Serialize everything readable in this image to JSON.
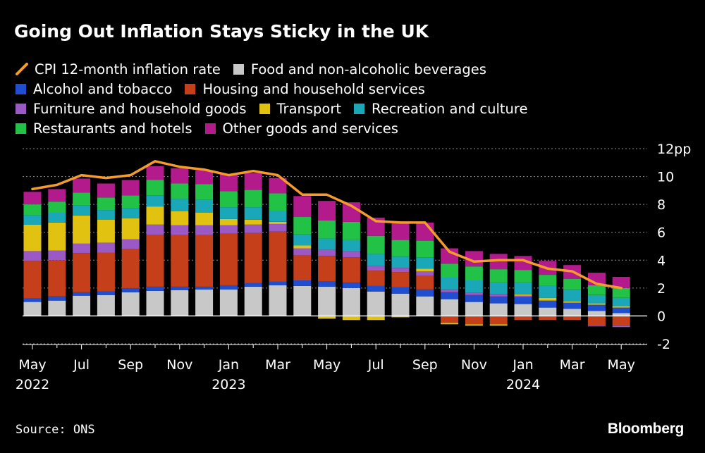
{
  "chart_data": {
    "type": "bar",
    "stacked": true,
    "title": "Going Out Inflation Stays Sticky in the UK",
    "unit": "pp",
    "xlabel": "",
    "ylabel": "",
    "ylim": [
      -2,
      12
    ],
    "yticks": [
      -2,
      0,
      2,
      4,
      6,
      8,
      10,
      12
    ],
    "ytick_labels": [
      "-2",
      "0",
      "2",
      "4",
      "6",
      "8",
      "10",
      "12pp"
    ],
    "grid": true,
    "categories": [
      "May 2022",
      "Jun 2022",
      "Jul 2022",
      "Aug 2022",
      "Sep 2022",
      "Oct 2022",
      "Nov 2022",
      "Dec 2022",
      "Jan 2023",
      "Feb 2023",
      "Mar 2023",
      "Apr 2023",
      "May 2023",
      "Jun 2023",
      "Jul 2023",
      "Aug 2023",
      "Sep 2023",
      "Oct 2023",
      "Nov 2023",
      "Dec 2023",
      "Jan 2024",
      "Feb 2024",
      "Mar 2024",
      "Apr 2024",
      "May 2024"
    ],
    "x_tick_labels": [
      {
        "index": 0,
        "month": "May",
        "year": "2022"
      },
      {
        "index": 2,
        "month": "Jul",
        "year": ""
      },
      {
        "index": 4,
        "month": "Sep",
        "year": ""
      },
      {
        "index": 6,
        "month": "Nov",
        "year": ""
      },
      {
        "index": 8,
        "month": "Jan",
        "year": "2023"
      },
      {
        "index": 10,
        "month": "Mar",
        "year": ""
      },
      {
        "index": 12,
        "month": "May",
        "year": ""
      },
      {
        "index": 14,
        "month": "Jul",
        "year": ""
      },
      {
        "index": 16,
        "month": "Sep",
        "year": ""
      },
      {
        "index": 18,
        "month": "Nov",
        "year": ""
      },
      {
        "index": 20,
        "month": "Jan",
        "year": "2024"
      },
      {
        "index": 22,
        "month": "Mar",
        "year": ""
      },
      {
        "index": 24,
        "month": "May",
        "year": ""
      }
    ],
    "series": [
      {
        "name": "Food and non-alcoholic beverages",
        "color": "#c8c8c8",
        "values": [
          1.0,
          1.1,
          1.45,
          1.5,
          1.7,
          1.8,
          1.85,
          1.9,
          1.9,
          2.1,
          2.2,
          2.15,
          2.1,
          2.0,
          1.75,
          1.6,
          1.4,
          1.2,
          1.0,
          0.9,
          0.85,
          0.6,
          0.5,
          0.35,
          0.2
        ]
      },
      {
        "name": "Alcohol and tobacco",
        "color": "#1f4fd0",
        "values": [
          0.25,
          0.3,
          0.25,
          0.25,
          0.3,
          0.3,
          0.25,
          0.2,
          0.3,
          0.25,
          0.25,
          0.4,
          0.4,
          0.4,
          0.4,
          0.45,
          0.5,
          0.5,
          0.5,
          0.5,
          0.5,
          0.5,
          0.45,
          0.45,
          0.4
        ]
      },
      {
        "name": "Housing and household services",
        "color": "#c5401a",
        "values": [
          2.7,
          2.6,
          2.8,
          2.8,
          2.8,
          3.7,
          3.7,
          3.7,
          3.7,
          3.6,
          3.6,
          1.8,
          1.8,
          1.8,
          1.1,
          1.1,
          1.0,
          -0.5,
          -0.6,
          -0.6,
          -0.3,
          -0.3,
          -0.3,
          -0.7,
          -0.7
        ]
      },
      {
        "name": "Furniture and household goods",
        "color": "#9b59c6",
        "values": [
          0.7,
          0.7,
          0.7,
          0.7,
          0.7,
          0.75,
          0.7,
          0.7,
          0.6,
          0.6,
          0.55,
          0.5,
          0.45,
          0.45,
          0.35,
          0.3,
          0.3,
          0.2,
          0.15,
          0.15,
          0.1,
          0.0,
          0.0,
          -0.05,
          -0.1
        ]
      },
      {
        "name": "Transport",
        "color": "#e2c210",
        "values": [
          1.9,
          2.0,
          2.0,
          1.65,
          1.5,
          1.3,
          1.0,
          0.9,
          0.45,
          0.35,
          0.15,
          0.2,
          -0.2,
          -0.3,
          -0.3,
          -0.1,
          0.2,
          -0.1,
          -0.1,
          -0.1,
          0.1,
          0.2,
          0.1,
          0.1,
          0.1
        ]
      },
      {
        "name": "Recreation and culture",
        "color": "#1aa7b7",
        "values": [
          0.65,
          0.7,
          0.75,
          0.7,
          0.75,
          0.8,
          0.9,
          0.95,
          0.85,
          0.9,
          0.8,
          0.8,
          0.8,
          0.8,
          0.85,
          0.8,
          0.8,
          0.85,
          0.9,
          0.85,
          0.85,
          0.85,
          0.85,
          0.6,
          0.6
        ]
      },
      {
        "name": "Restaurants and hotels",
        "color": "#22c247",
        "values": [
          0.8,
          0.8,
          0.9,
          0.9,
          0.9,
          1.1,
          1.1,
          1.1,
          1.15,
          1.25,
          1.25,
          1.25,
          1.3,
          1.3,
          1.3,
          1.2,
          1.2,
          1.0,
          1.0,
          0.95,
          0.9,
          0.8,
          0.75,
          0.7,
          0.7
        ]
      },
      {
        "name": "Other goods and services",
        "color": "#b31b8c",
        "values": [
          0.9,
          0.9,
          1.0,
          1.0,
          1.1,
          1.0,
          1.1,
          1.0,
          1.2,
          1.2,
          1.1,
          1.5,
          1.4,
          1.4,
          1.3,
          1.3,
          1.3,
          1.1,
          1.1,
          1.1,
          1.0,
          1.0,
          1.0,
          0.9,
          0.8
        ]
      }
    ],
    "line": {
      "name": "CPI 12-month inflation rate",
      "color": "#f39c2d",
      "values": [
        9.1,
        9.4,
        10.1,
        9.9,
        10.1,
        11.1,
        10.7,
        10.5,
        10.1,
        10.4,
        10.1,
        8.7,
        8.7,
        7.9,
        6.8,
        6.7,
        6.7,
        4.6,
        3.9,
        4.0,
        4.0,
        3.4,
        3.2,
        2.3,
        2.0
      ]
    }
  },
  "legend_rows": [
    [
      {
        "name": "CPI 12-month inflation rate",
        "kind": "line",
        "color": "#f39c2d"
      },
      {
        "name": "Food and non-alcoholic beverages",
        "kind": "box",
        "color": "#c8c8c8"
      }
    ],
    [
      {
        "name": "Alcohol and tobacco",
        "kind": "box",
        "color": "#1f4fd0"
      },
      {
        "name": "Housing and household services",
        "kind": "box",
        "color": "#c5401a"
      }
    ],
    [
      {
        "name": "Furniture and household goods",
        "kind": "box",
        "color": "#9b59c6"
      },
      {
        "name": "Transport",
        "kind": "box",
        "color": "#e2c210"
      },
      {
        "name": "Recreation and culture",
        "kind": "box",
        "color": "#1aa7b7"
      }
    ],
    [
      {
        "name": "Restaurants and hotels",
        "kind": "box",
        "color": "#22c247"
      },
      {
        "name": "Other goods and services",
        "kind": "box",
        "color": "#b31b8c"
      }
    ]
  ],
  "source": "Source: ONS",
  "brand": "Bloomberg"
}
